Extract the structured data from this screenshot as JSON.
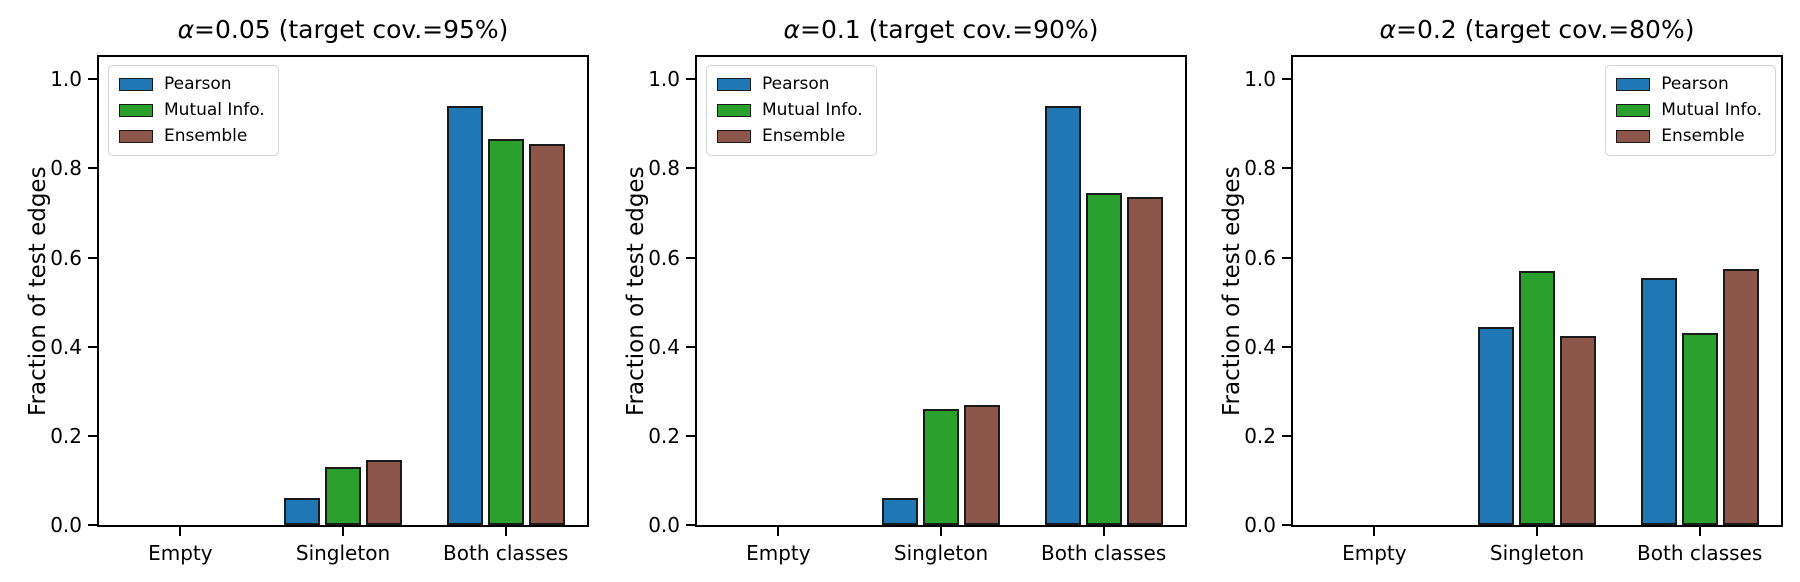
{
  "figure": {
    "background_color": "#ffffff",
    "text_color": "#000000",
    "bar_edge_color": "#1a1a1a",
    "axes_edge_color": "#000000"
  },
  "chart_data": [
    {
      "type": "bar",
      "title": "α=0.05 (target cov.=95%)",
      "xlabel": "",
      "ylabel": "Fraction of test edges",
      "categories": [
        "Empty",
        "Singleton",
        "Both classes"
      ],
      "series": [
        {
          "name": "Pearson",
          "color": "#1f77b4",
          "values": [
            0.0,
            0.06,
            0.94
          ]
        },
        {
          "name": "Mutual Info.",
          "color": "#2ca02c",
          "values": [
            0.0,
            0.13,
            0.865
          ]
        },
        {
          "name": "Ensemble",
          "color": "#8c564b",
          "values": [
            0.0,
            0.145,
            0.855
          ]
        }
      ],
      "ylim": [
        0,
        1.05
      ],
      "yticks": [
        0.0,
        0.2,
        0.4,
        0.6,
        0.8,
        1.0
      ],
      "ytick_labels": [
        "0.0",
        "0.2",
        "0.4",
        "0.6",
        "0.8",
        "1.0"
      ],
      "grid": false,
      "legend_position": "upper-left"
    },
    {
      "type": "bar",
      "title": "α=0.1 (target cov.=90%)",
      "xlabel": "",
      "ylabel": "Fraction of test edges",
      "categories": [
        "Empty",
        "Singleton",
        "Both classes"
      ],
      "series": [
        {
          "name": "Pearson",
          "color": "#1f77b4",
          "values": [
            0.0,
            0.06,
            0.94
          ]
        },
        {
          "name": "Mutual Info.",
          "color": "#2ca02c",
          "values": [
            0.0,
            0.26,
            0.745
          ]
        },
        {
          "name": "Ensemble",
          "color": "#8c564b",
          "values": [
            0.0,
            0.27,
            0.735
          ]
        }
      ],
      "ylim": [
        0,
        1.05
      ],
      "yticks": [
        0.0,
        0.2,
        0.4,
        0.6,
        0.8,
        1.0
      ],
      "ytick_labels": [
        "0.0",
        "0.2",
        "0.4",
        "0.6",
        "0.8",
        "1.0"
      ],
      "grid": false,
      "legend_position": "upper-left"
    },
    {
      "type": "bar",
      "title": "α=0.2 (target cov.=80%)",
      "xlabel": "",
      "ylabel": "Fraction of test edges",
      "categories": [
        "Empty",
        "Singleton",
        "Both classes"
      ],
      "series": [
        {
          "name": "Pearson",
          "color": "#1f77b4",
          "values": [
            0.0,
            0.445,
            0.555
          ]
        },
        {
          "name": "Mutual Info.",
          "color": "#2ca02c",
          "values": [
            0.0,
            0.57,
            0.43
          ]
        },
        {
          "name": "Ensemble",
          "color": "#8c564b",
          "values": [
            0.0,
            0.425,
            0.575
          ]
        }
      ],
      "ylim": [
        0,
        1.05
      ],
      "yticks": [
        0.0,
        0.2,
        0.4,
        0.6,
        0.8,
        1.0
      ],
      "ytick_labels": [
        "0.0",
        "0.2",
        "0.4",
        "0.6",
        "0.8",
        "1.0"
      ],
      "grid": false,
      "legend_position": "upper-right"
    }
  ]
}
